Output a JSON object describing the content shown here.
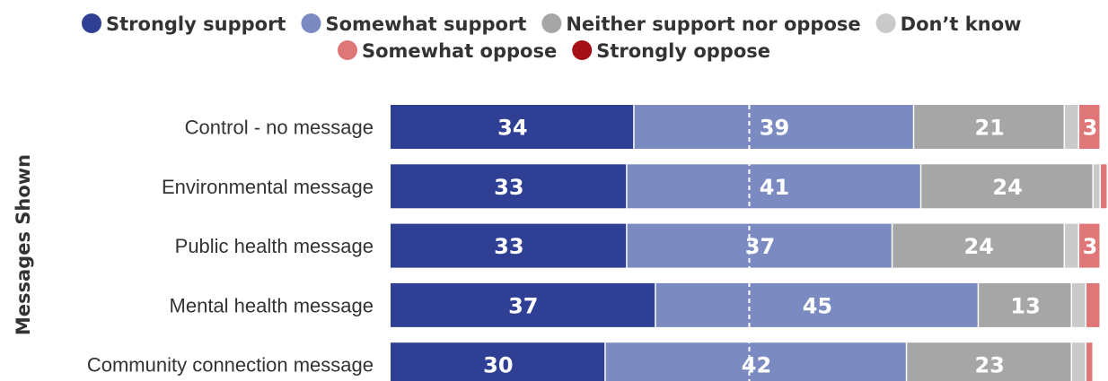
{
  "chart_data": {
    "type": "bar",
    "orientation": "horizontal",
    "stacked": true,
    "title": "",
    "xlabel": "",
    "ylabel": "Messages Shown",
    "xlim": [
      0,
      100
    ],
    "grid": false,
    "legend_position": "top",
    "reference_line": 50,
    "categories": [
      "Control - no message",
      "Environmental message",
      "Public health message",
      "Mental health message",
      "Community connection message"
    ],
    "series": [
      {
        "name": "Strongly support",
        "color": "#2e3f94",
        "values": [
          34,
          33,
          33,
          37,
          30
        ]
      },
      {
        "name": "Somewhat support",
        "color": "#7b8bc2",
        "values": [
          39,
          41,
          37,
          45,
          42
        ]
      },
      {
        "name": "Neither support nor oppose",
        "color": "#a6a6a6",
        "values": [
          21,
          24,
          24,
          13,
          23
        ]
      },
      {
        "name": "Don’t know",
        "color": "#cacaca",
        "values": [
          2,
          1,
          2,
          2,
          2
        ]
      },
      {
        "name": "Somewhat oppose",
        "color": "#df7779",
        "values": [
          3,
          1,
          3,
          2,
          1
        ]
      },
      {
        "name": "Strongly oppose",
        "color": "#a50f15",
        "values": [
          0,
          0,
          0,
          0,
          0
        ]
      }
    ],
    "data_labels": [
      [
        "34",
        "39",
        "21",
        "",
        "3",
        ""
      ],
      [
        "33",
        "41",
        "24",
        "",
        "",
        ""
      ],
      [
        "33",
        "37",
        "24",
        "",
        "3",
        ""
      ],
      [
        "37",
        "45",
        "13",
        "",
        "",
        ""
      ],
      [
        "30",
        "42",
        "23",
        "",
        "",
        ""
      ]
    ]
  }
}
